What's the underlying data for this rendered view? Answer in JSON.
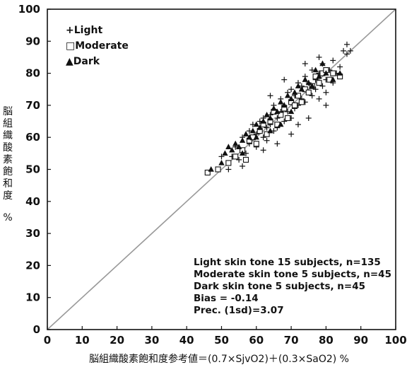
{
  "chart_data": {
    "type": "scatter",
    "xlabel": "脳組織酸素飽和度参考値＝(0.7×SjvO2)＋(0.3×SaO2) %",
    "ylabel": "脳組織酸素飽和度",
    "yunit": "%",
    "xlim": [
      0,
      100
    ],
    "ylim": [
      0,
      100
    ],
    "xticks": [
      "0",
      "10",
      "20",
      "30",
      "40",
      "50",
      "60",
      "70",
      "80",
      "90",
      "100"
    ],
    "yticks": [
      "0",
      "10",
      "20",
      "30",
      "40",
      "50",
      "60",
      "70",
      "80",
      "90",
      "100"
    ],
    "grid": false,
    "identity_line": true,
    "legend_position": "top-left",
    "legend": [
      {
        "symbol": "+",
        "label": "+Light"
      },
      {
        "symbol": "□",
        "label": "□Moderate"
      },
      {
        "symbol": "▲",
        "label": "▲Dark"
      }
    ],
    "annotations": [
      "Light skin tone 15 subjects, n=135",
      "Moderate skin tone 5 subjects, n=45",
      "Dark skin tone 5 subjects, n=45",
      "Bias = -0.14",
      "Prec. (1sd)=3.07"
    ],
    "series": [
      {
        "name": "Light",
        "marker": "plus",
        "color": "#111111",
        "points": [
          [
            50,
            54
          ],
          [
            52,
            50
          ],
          [
            53,
            54
          ],
          [
            54,
            57
          ],
          [
            55,
            53
          ],
          [
            56,
            60
          ],
          [
            57,
            55
          ],
          [
            58,
            62
          ],
          [
            58,
            58
          ],
          [
            59,
            64
          ],
          [
            60,
            61
          ],
          [
            60,
            57
          ],
          [
            61,
            65
          ],
          [
            61,
            62
          ],
          [
            62,
            60
          ],
          [
            62,
            66
          ],
          [
            63,
            63
          ],
          [
            63,
            59
          ],
          [
            64,
            67
          ],
          [
            64,
            64
          ],
          [
            65,
            62
          ],
          [
            65,
            70
          ],
          [
            66,
            66
          ],
          [
            66,
            63
          ],
          [
            67,
            68
          ],
          [
            67,
            72
          ],
          [
            68,
            65
          ],
          [
            68,
            70
          ],
          [
            69,
            74
          ],
          [
            69,
            68
          ],
          [
            70,
            66
          ],
          [
            70,
            71
          ],
          [
            70,
            75
          ],
          [
            71,
            69
          ],
          [
            71,
            73
          ],
          [
            72,
            77
          ],
          [
            72,
            70
          ],
          [
            73,
            72
          ],
          [
            73,
            76
          ],
          [
            74,
            71
          ],
          [
            74,
            79
          ],
          [
            75,
            74
          ],
          [
            75,
            77
          ],
          [
            76,
            73
          ],
          [
            76,
            81
          ],
          [
            77,
            75
          ],
          [
            77,
            78
          ],
          [
            78,
            72
          ],
          [
            78,
            80
          ],
          [
            79,
            76
          ],
          [
            79,
            83
          ],
          [
            80,
            78
          ],
          [
            80,
            74
          ],
          [
            81,
            81
          ],
          [
            82,
            77
          ],
          [
            82,
            84
          ],
          [
            83,
            80
          ],
          [
            84,
            82
          ],
          [
            85,
            87
          ],
          [
            86,
            86
          ],
          [
            86,
            89
          ],
          [
            87,
            87
          ],
          [
            78,
            85
          ],
          [
            74,
            83
          ],
          [
            68,
            78
          ],
          [
            64,
            73
          ],
          [
            72,
            64
          ],
          [
            62,
            56
          ],
          [
            56,
            51
          ],
          [
            66,
            58
          ],
          [
            80,
            70
          ],
          [
            75,
            66
          ],
          [
            70,
            61
          ]
        ]
      },
      {
        "name": "Moderate",
        "marker": "square",
        "color": "#111111",
        "points": [
          [
            46,
            49
          ],
          [
            49,
            50
          ],
          [
            52,
            52
          ],
          [
            54,
            54
          ],
          [
            56,
            56
          ],
          [
            57,
            53
          ],
          [
            58,
            59
          ],
          [
            60,
            58
          ],
          [
            61,
            62
          ],
          [
            63,
            61
          ],
          [
            64,
            65
          ],
          [
            66,
            64
          ],
          [
            67,
            67
          ],
          [
            68,
            69
          ],
          [
            69,
            66
          ],
          [
            70,
            71
          ],
          [
            71,
            70
          ],
          [
            72,
            73
          ],
          [
            73,
            71
          ],
          [
            74,
            75
          ],
          [
            75,
            74
          ],
          [
            76,
            76
          ],
          [
            77,
            79
          ],
          [
            78,
            77
          ],
          [
            79,
            80
          ],
          [
            80,
            81
          ],
          [
            81,
            78
          ],
          [
            82,
            80
          ],
          [
            84,
            79
          ],
          [
            65,
            68
          ],
          [
            62,
            64
          ],
          [
            59,
            60
          ]
        ]
      },
      {
        "name": "Dark",
        "marker": "triangle",
        "color": "#111111",
        "points": [
          [
            47,
            50
          ],
          [
            50,
            52
          ],
          [
            51,
            55
          ],
          [
            52,
            57
          ],
          [
            53,
            56
          ],
          [
            54,
            58
          ],
          [
            55,
            57
          ],
          [
            56,
            59
          ],
          [
            57,
            61
          ],
          [
            58,
            60
          ],
          [
            59,
            62
          ],
          [
            60,
            64
          ],
          [
            61,
            63
          ],
          [
            62,
            65
          ],
          [
            63,
            67
          ],
          [
            64,
            66
          ],
          [
            65,
            69
          ],
          [
            66,
            68
          ],
          [
            67,
            71
          ],
          [
            68,
            70
          ],
          [
            69,
            73
          ],
          [
            70,
            72
          ],
          [
            71,
            74
          ],
          [
            72,
            76
          ],
          [
            73,
            75
          ],
          [
            74,
            78
          ],
          [
            75,
            77
          ],
          [
            76,
            76
          ],
          [
            77,
            81
          ],
          [
            78,
            79
          ],
          [
            79,
            83
          ],
          [
            80,
            80
          ],
          [
            82,
            78
          ],
          [
            84,
            80
          ],
          [
            70,
            68
          ],
          [
            67,
            64
          ],
          [
            64,
            62
          ],
          [
            60,
            60
          ],
          [
            56,
            55
          ]
        ]
      }
    ]
  }
}
